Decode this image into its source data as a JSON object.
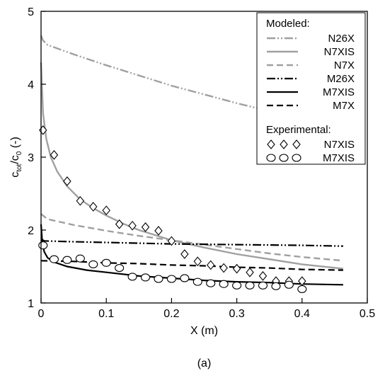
{
  "chart_data": {
    "type": "line",
    "caption": "(a)",
    "xlabel": "X (m)",
    "ylabel": {
      "main": "c",
      "sub1": "tot",
      "mid": "/c",
      "sub2": "0",
      "tail": " (-)"
    },
    "xlim": [
      0,
      0.5
    ],
    "ylim": [
      1,
      5
    ],
    "xticks": [
      "0",
      "0.1",
      "0.2",
      "0.3",
      "0.4",
      "0.5"
    ],
    "yticks": [
      "1",
      "2",
      "3",
      "4",
      "5"
    ],
    "grid": false,
    "legend_position": "top-right",
    "legend": {
      "modeled_header": "Modeled:",
      "experimental_header": "Experimental:"
    },
    "modeled_series": [
      {
        "name": "N26X",
        "color": "#a0a0a0",
        "dash": "dashdotdot",
        "x": [
          0,
          0.003,
          0.01,
          0.05,
          0.1,
          0.15,
          0.2,
          0.25,
          0.3,
          0.35,
          0.4,
          0.463
        ],
        "y": [
          4.67,
          4.6,
          4.54,
          4.41,
          4.26,
          4.12,
          3.98,
          3.86,
          3.74,
          3.63,
          3.52,
          3.4
        ]
      },
      {
        "name": "N7XIS",
        "color": "#a0a0a0",
        "dash": "solid",
        "x": [
          0,
          0.003,
          0.008,
          0.015,
          0.025,
          0.04,
          0.06,
          0.08,
          0.1,
          0.125,
          0.15,
          0.2,
          0.25,
          0.3,
          0.35,
          0.4,
          0.463
        ],
        "y": [
          4.3,
          3.6,
          3.25,
          3.0,
          2.8,
          2.6,
          2.42,
          2.3,
          2.2,
          2.09,
          2.0,
          1.86,
          1.76,
          1.67,
          1.6,
          1.53,
          1.47
        ]
      },
      {
        "name": "N7X",
        "color": "#a0a0a0",
        "dash": "dashed",
        "x": [
          0,
          0.01,
          0.05,
          0.1,
          0.15,
          0.2,
          0.25,
          0.3,
          0.35,
          0.4,
          0.463
        ],
        "y": [
          2.22,
          2.15,
          2.07,
          1.99,
          1.92,
          1.86,
          1.8,
          1.74,
          1.68,
          1.63,
          1.58
        ]
      },
      {
        "name": "M26X",
        "color": "#000000",
        "dash": "dashdotdot",
        "x": [
          0,
          0.005,
          0.05,
          0.1,
          0.2,
          0.3,
          0.4,
          0.463
        ],
        "y": [
          1.88,
          1.85,
          1.84,
          1.83,
          1.81,
          1.8,
          1.79,
          1.78
        ]
      },
      {
        "name": "M7XIS",
        "color": "#000000",
        "dash": "solid",
        "x": [
          0,
          0.002,
          0.005,
          0.01,
          0.02,
          0.04,
          0.07,
          0.1,
          0.15,
          0.2,
          0.25,
          0.3,
          0.35,
          0.4,
          0.463
        ],
        "y": [
          2.08,
          1.82,
          1.7,
          1.62,
          1.56,
          1.5,
          1.45,
          1.42,
          1.37,
          1.34,
          1.31,
          1.29,
          1.28,
          1.26,
          1.25
        ]
      },
      {
        "name": "M7X",
        "color": "#000000",
        "dash": "dashed",
        "x": [
          0,
          0.05,
          0.1,
          0.15,
          0.2,
          0.25,
          0.3,
          0.35,
          0.4,
          0.463
        ],
        "y": [
          1.58,
          1.57,
          1.55,
          1.54,
          1.52,
          1.51,
          1.49,
          1.48,
          1.46,
          1.45
        ]
      }
    ],
    "experimental_series": [
      {
        "name": "N7XIS",
        "marker": "diamond",
        "x": [
          0.003,
          0.02,
          0.04,
          0.06,
          0.08,
          0.1,
          0.12,
          0.14,
          0.16,
          0.18,
          0.2,
          0.22,
          0.24,
          0.26,
          0.28,
          0.3,
          0.32,
          0.34,
          0.36,
          0.38,
          0.4
        ],
        "y": [
          3.37,
          3.03,
          2.67,
          2.4,
          2.32,
          2.27,
          2.08,
          2.06,
          2.04,
          1.99,
          1.85,
          1.67,
          1.57,
          1.52,
          1.48,
          1.47,
          1.42,
          1.37,
          1.3,
          1.3,
          1.3
        ]
      },
      {
        "name": "M7XIS",
        "marker": "ellipse",
        "x": [
          0.003,
          0.02,
          0.04,
          0.06,
          0.08,
          0.1,
          0.12,
          0.14,
          0.16,
          0.18,
          0.2,
          0.22,
          0.24,
          0.26,
          0.28,
          0.3,
          0.32,
          0.34,
          0.36,
          0.38,
          0.4
        ],
        "y": [
          1.79,
          1.6,
          1.59,
          1.61,
          1.53,
          1.55,
          1.48,
          1.36,
          1.35,
          1.33,
          1.33,
          1.34,
          1.29,
          1.27,
          1.26,
          1.24,
          1.24,
          1.24,
          1.23,
          1.25,
          1.19
        ]
      }
    ]
  }
}
